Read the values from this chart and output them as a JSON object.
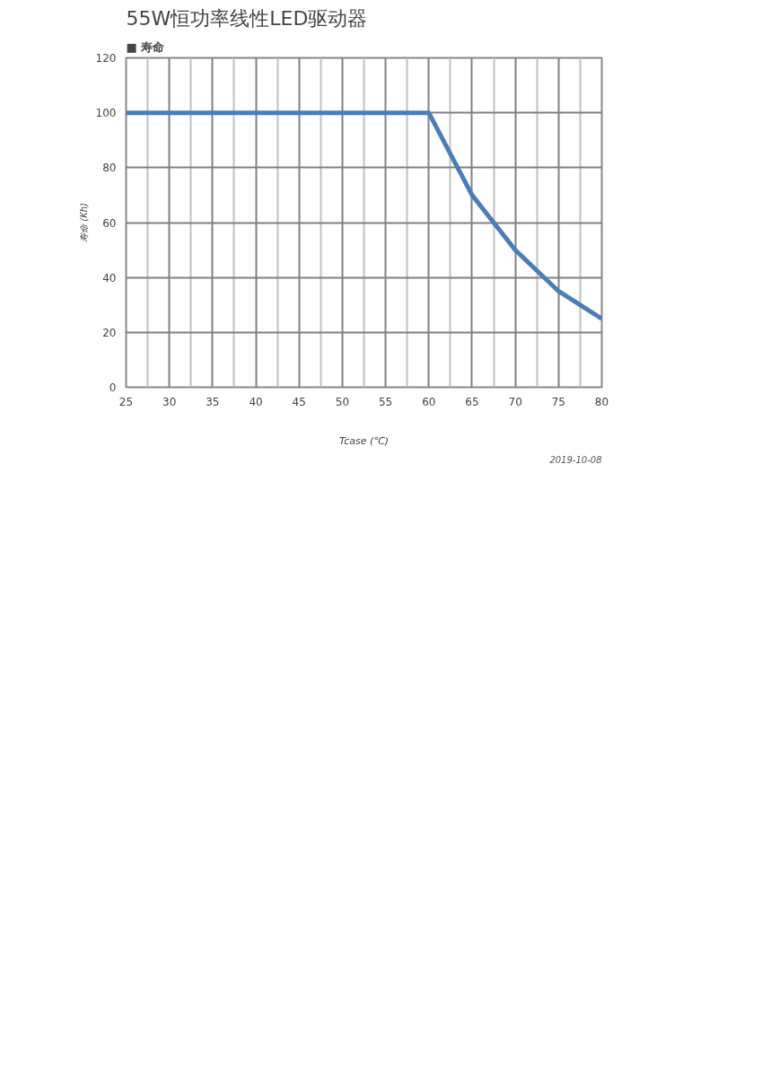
{
  "chart_data": {
    "type": "line",
    "title": "55W恒功率线性LED驱动器",
    "subtitle": "■ 寿命",
    "xlabel": "Tcase (℃)",
    "ylabel": "寿命 (Kh)",
    "x": [
      25,
      60,
      65,
      70,
      75,
      80
    ],
    "series": [
      {
        "color": "#4a7ebb",
        "values": [
          100,
          100,
          70,
          50,
          35,
          25
        ]
      }
    ],
    "xlim": [
      25,
      80
    ],
    "xticks": [
      25,
      30,
      35,
      40,
      45,
      50,
      55,
      60,
      65,
      70,
      75,
      80
    ],
    "ylim": [
      0,
      120
    ],
    "yticks": [
      0,
      20,
      40,
      60,
      80,
      100,
      120
    ],
    "grid": true,
    "marker": "none",
    "line_style": "solid",
    "annotations": [
      "2019-10-08"
    ]
  }
}
